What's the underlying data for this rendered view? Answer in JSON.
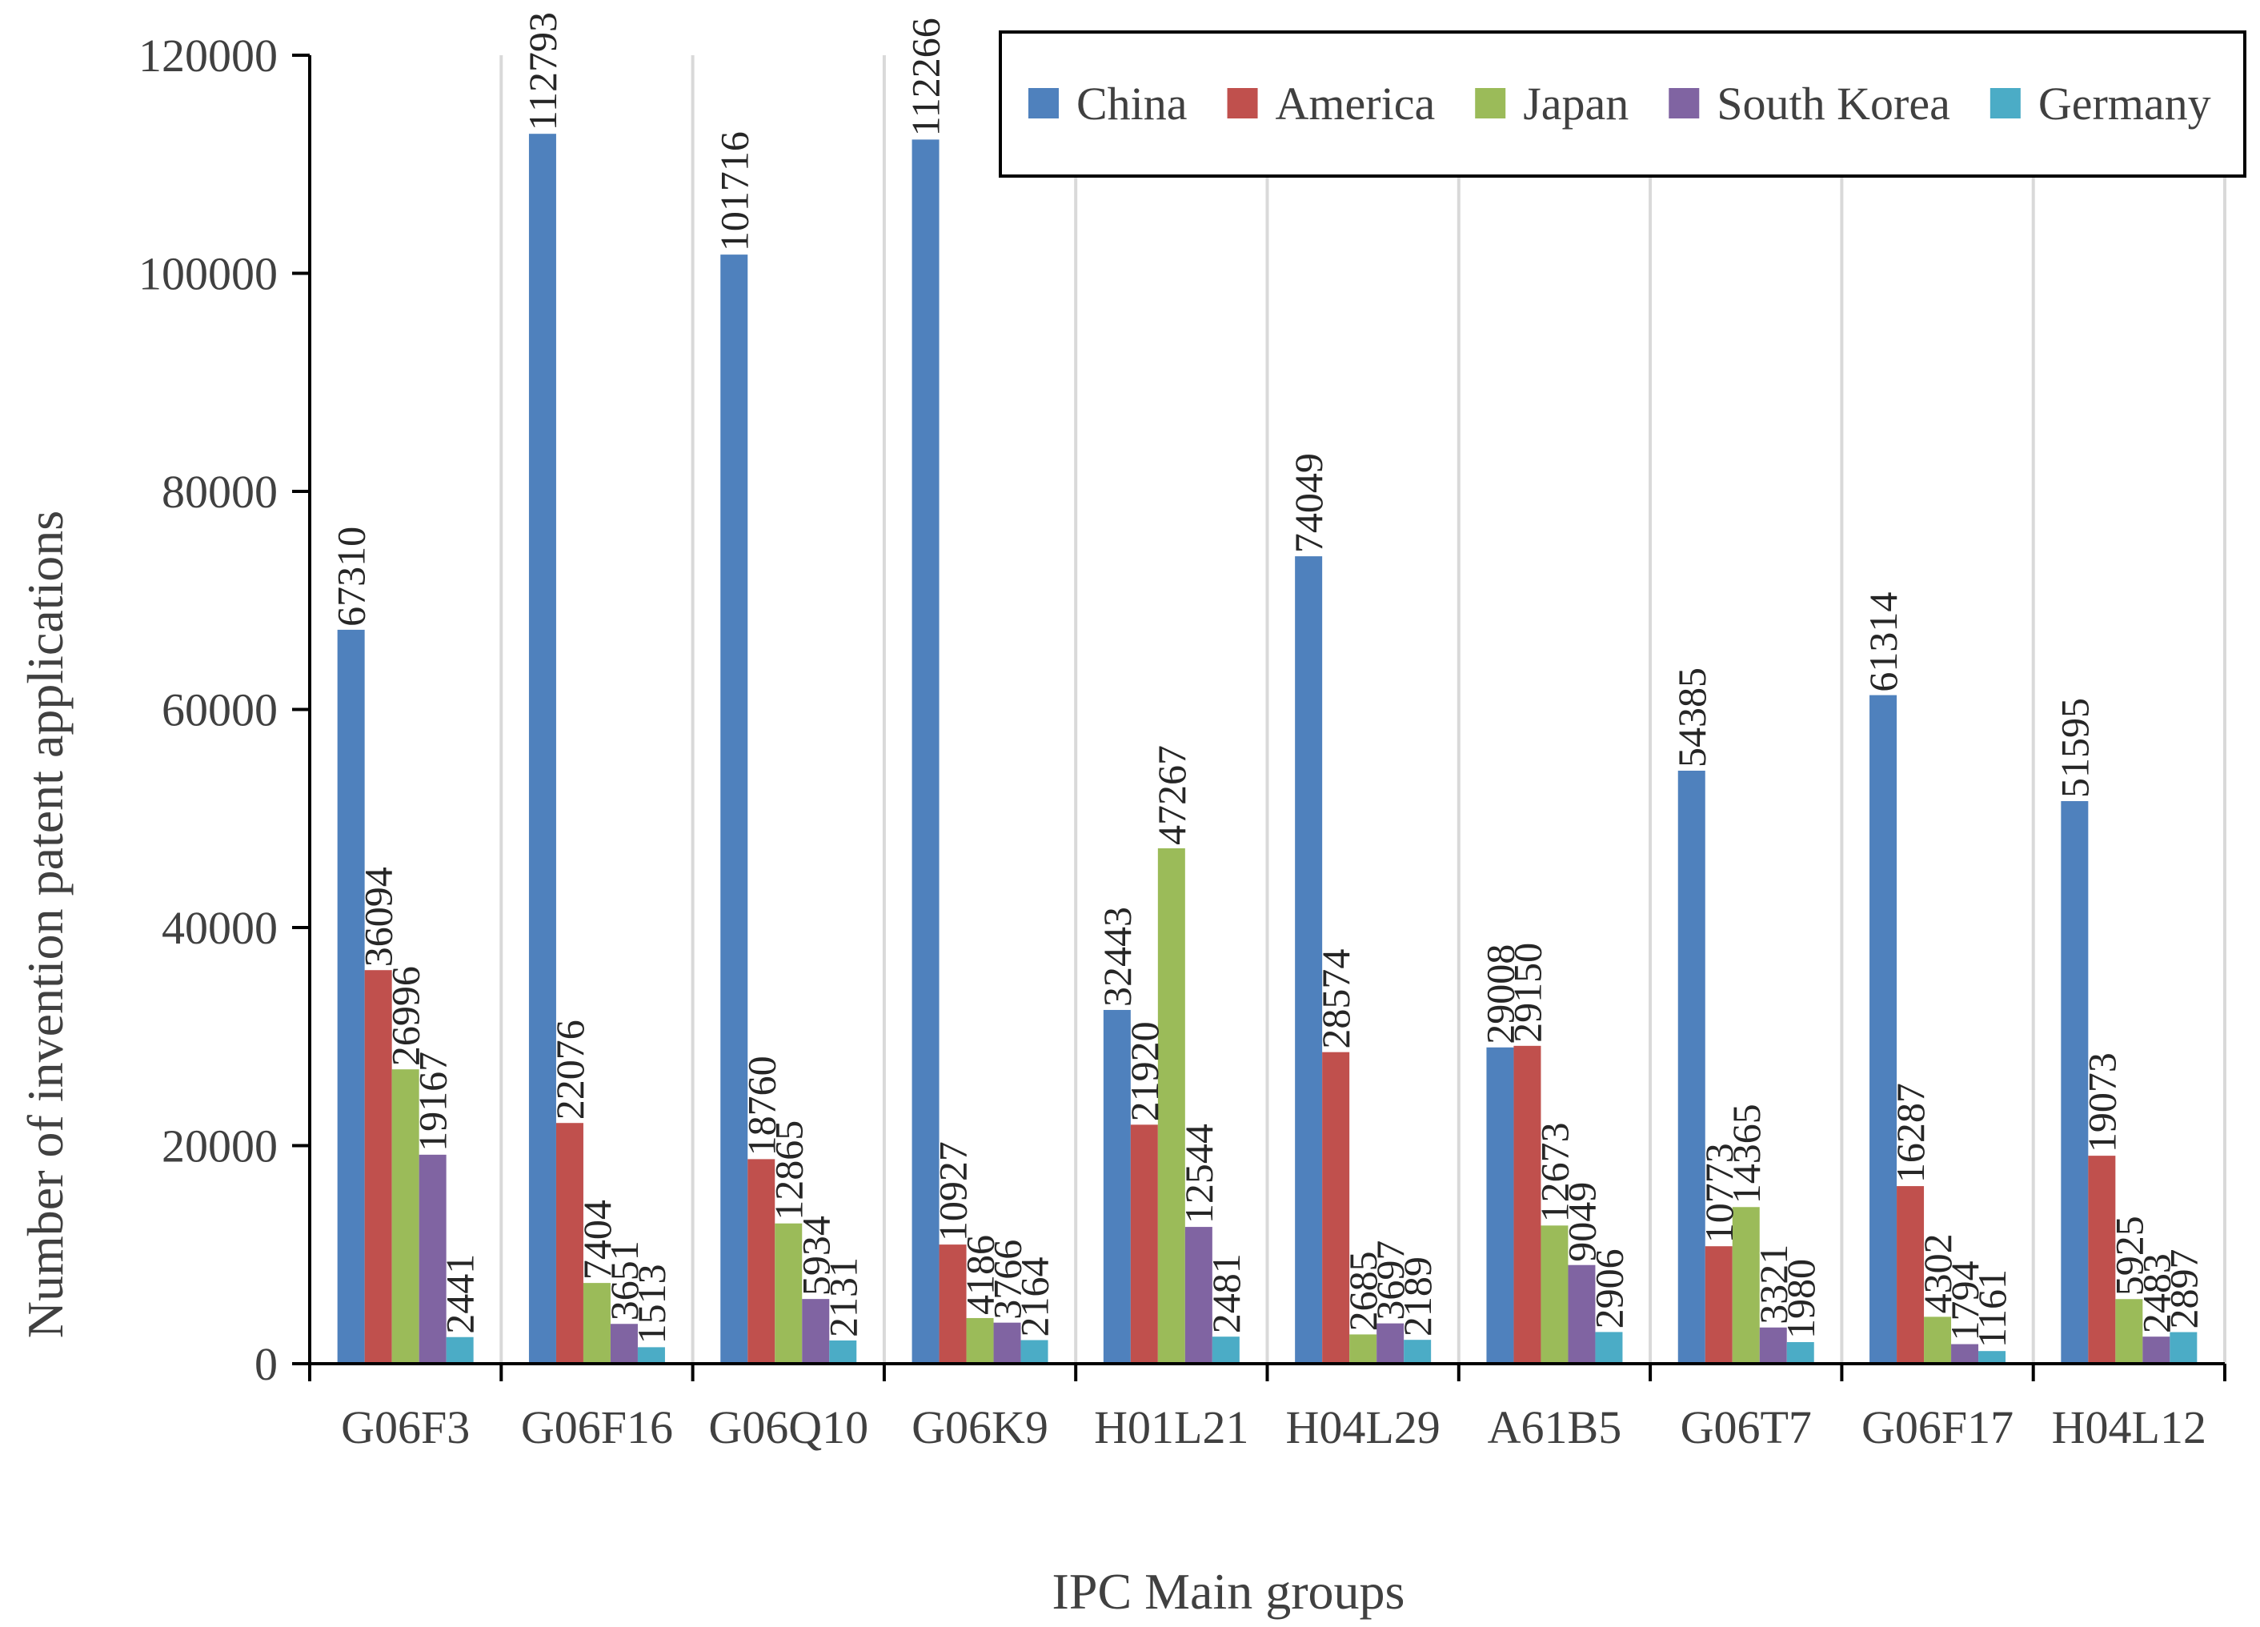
{
  "chart_data": {
    "type": "bar",
    "title": "",
    "xlabel": "IPC Main groups",
    "ylabel": "Number of invention patent applications",
    "ylim": [
      0,
      120000
    ],
    "yticks": [
      "0",
      "20000",
      "40000",
      "60000",
      "80000",
      "100000",
      "120000"
    ],
    "grid": "vertical",
    "legend_position": "top-right",
    "categories": [
      "G06F3",
      "G06F16",
      "G06Q10",
      "G06K9",
      "H01L21",
      "H04L29",
      "A61B5",
      "G06T7",
      "G06F17",
      "H04L12"
    ],
    "series": [
      {
        "name": "China",
        "color": "#4f81bd",
        "values": [
          67310,
          112793,
          101716,
          112266,
          32443,
          74049,
          29008,
          54385,
          61314,
          51595
        ]
      },
      {
        "name": "America",
        "color": "#c0504d",
        "values": [
          36094,
          22076,
          18760,
          10927,
          21920,
          28574,
          29150,
          10773,
          16287,
          19073
        ]
      },
      {
        "name": "Japan",
        "color": "#9bbb59",
        "values": [
          26996,
          7404,
          12865,
          4186,
          47267,
          2685,
          12673,
          14365,
          4302,
          5925
        ]
      },
      {
        "name": "South Korea",
        "color": "#8064a2",
        "values": [
          19167,
          3651,
          5934,
          3766,
          12544,
          3697,
          9049,
          3321,
          1794,
          2483
        ]
      },
      {
        "name": "Germany",
        "color": "#4bacc6",
        "values": [
          2441,
          1513,
          2131,
          2164,
          2481,
          2189,
          2906,
          1980,
          1161,
          2897
        ]
      }
    ]
  }
}
